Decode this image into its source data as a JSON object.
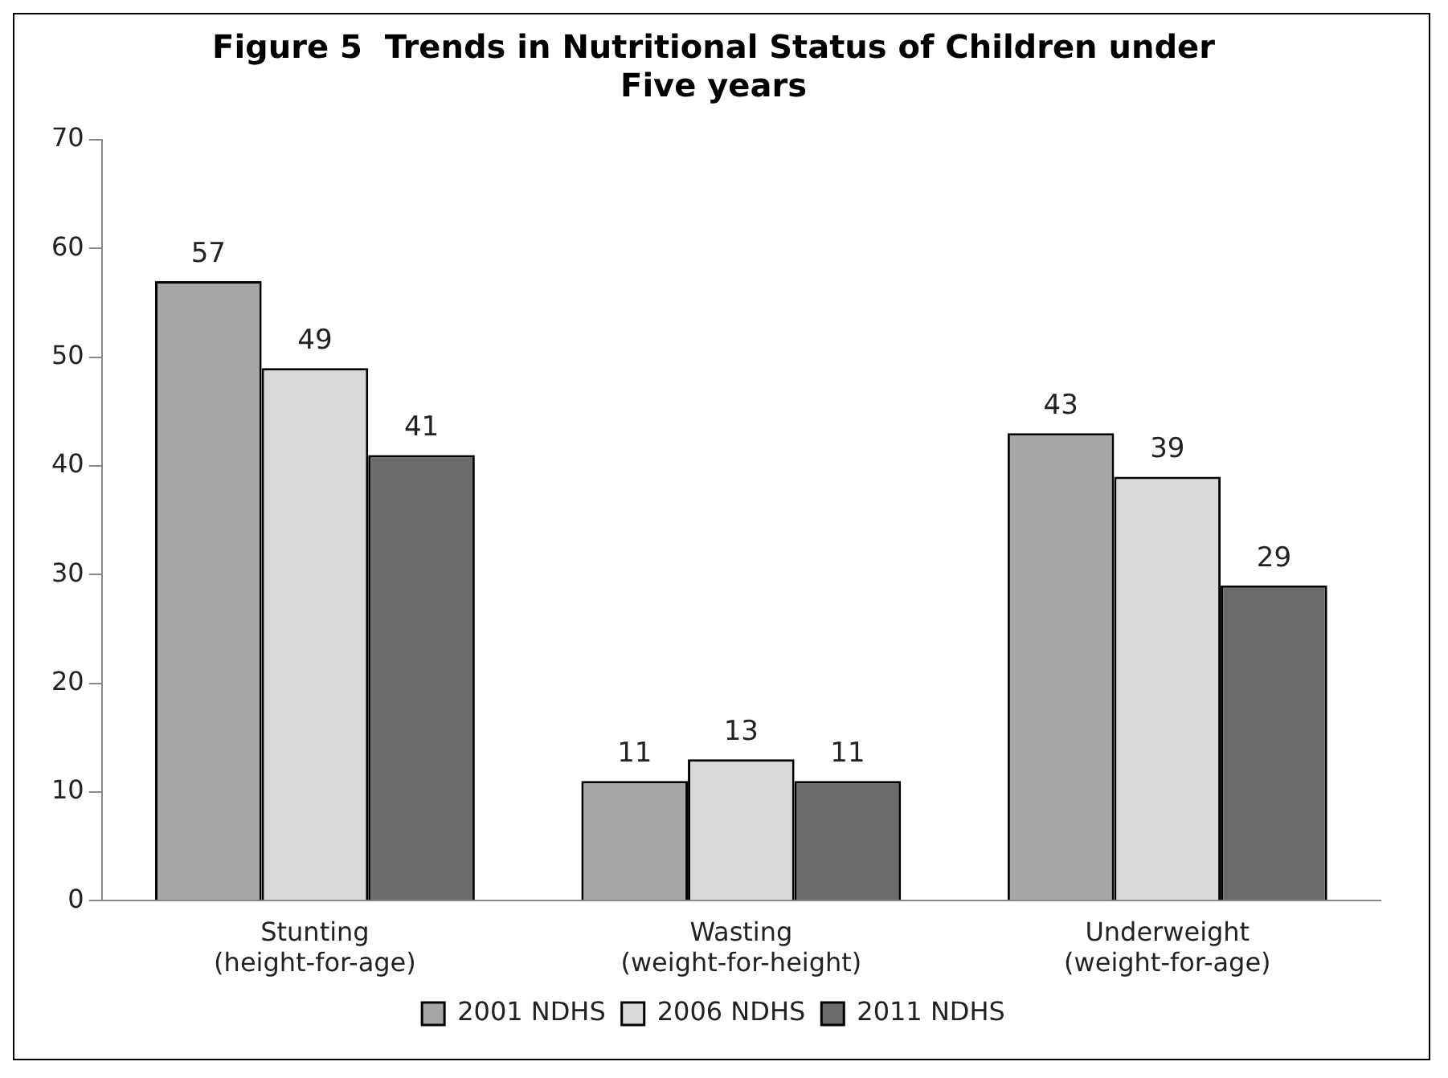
{
  "chart_data": {
    "type": "bar",
    "title": "Figure 5  Trends in Nutritional Status of Children under\nFive years",
    "categories": [
      "Stunting\n(height-for-age)",
      "Wasting\n(weight-for-height)",
      "Underweight\n(weight-for-age)"
    ],
    "series": [
      {
        "name": "2001 NDHS",
        "color": "#a6a6a6",
        "values": [
          57,
          11,
          43
        ]
      },
      {
        "name": "2006 NDHS",
        "color": "#d9d9d9",
        "values": [
          49,
          13,
          39
        ]
      },
      {
        "name": "2011 NDHS",
        "color": "#6b6b6b",
        "values": [
          41,
          11,
          29
        ]
      }
    ],
    "ylim": [
      0,
      70
    ],
    "yticks": [
      0,
      10,
      20,
      30,
      40,
      50,
      60,
      70
    ],
    "grid": false,
    "legend": "bottom",
    "data_labels": true
  }
}
